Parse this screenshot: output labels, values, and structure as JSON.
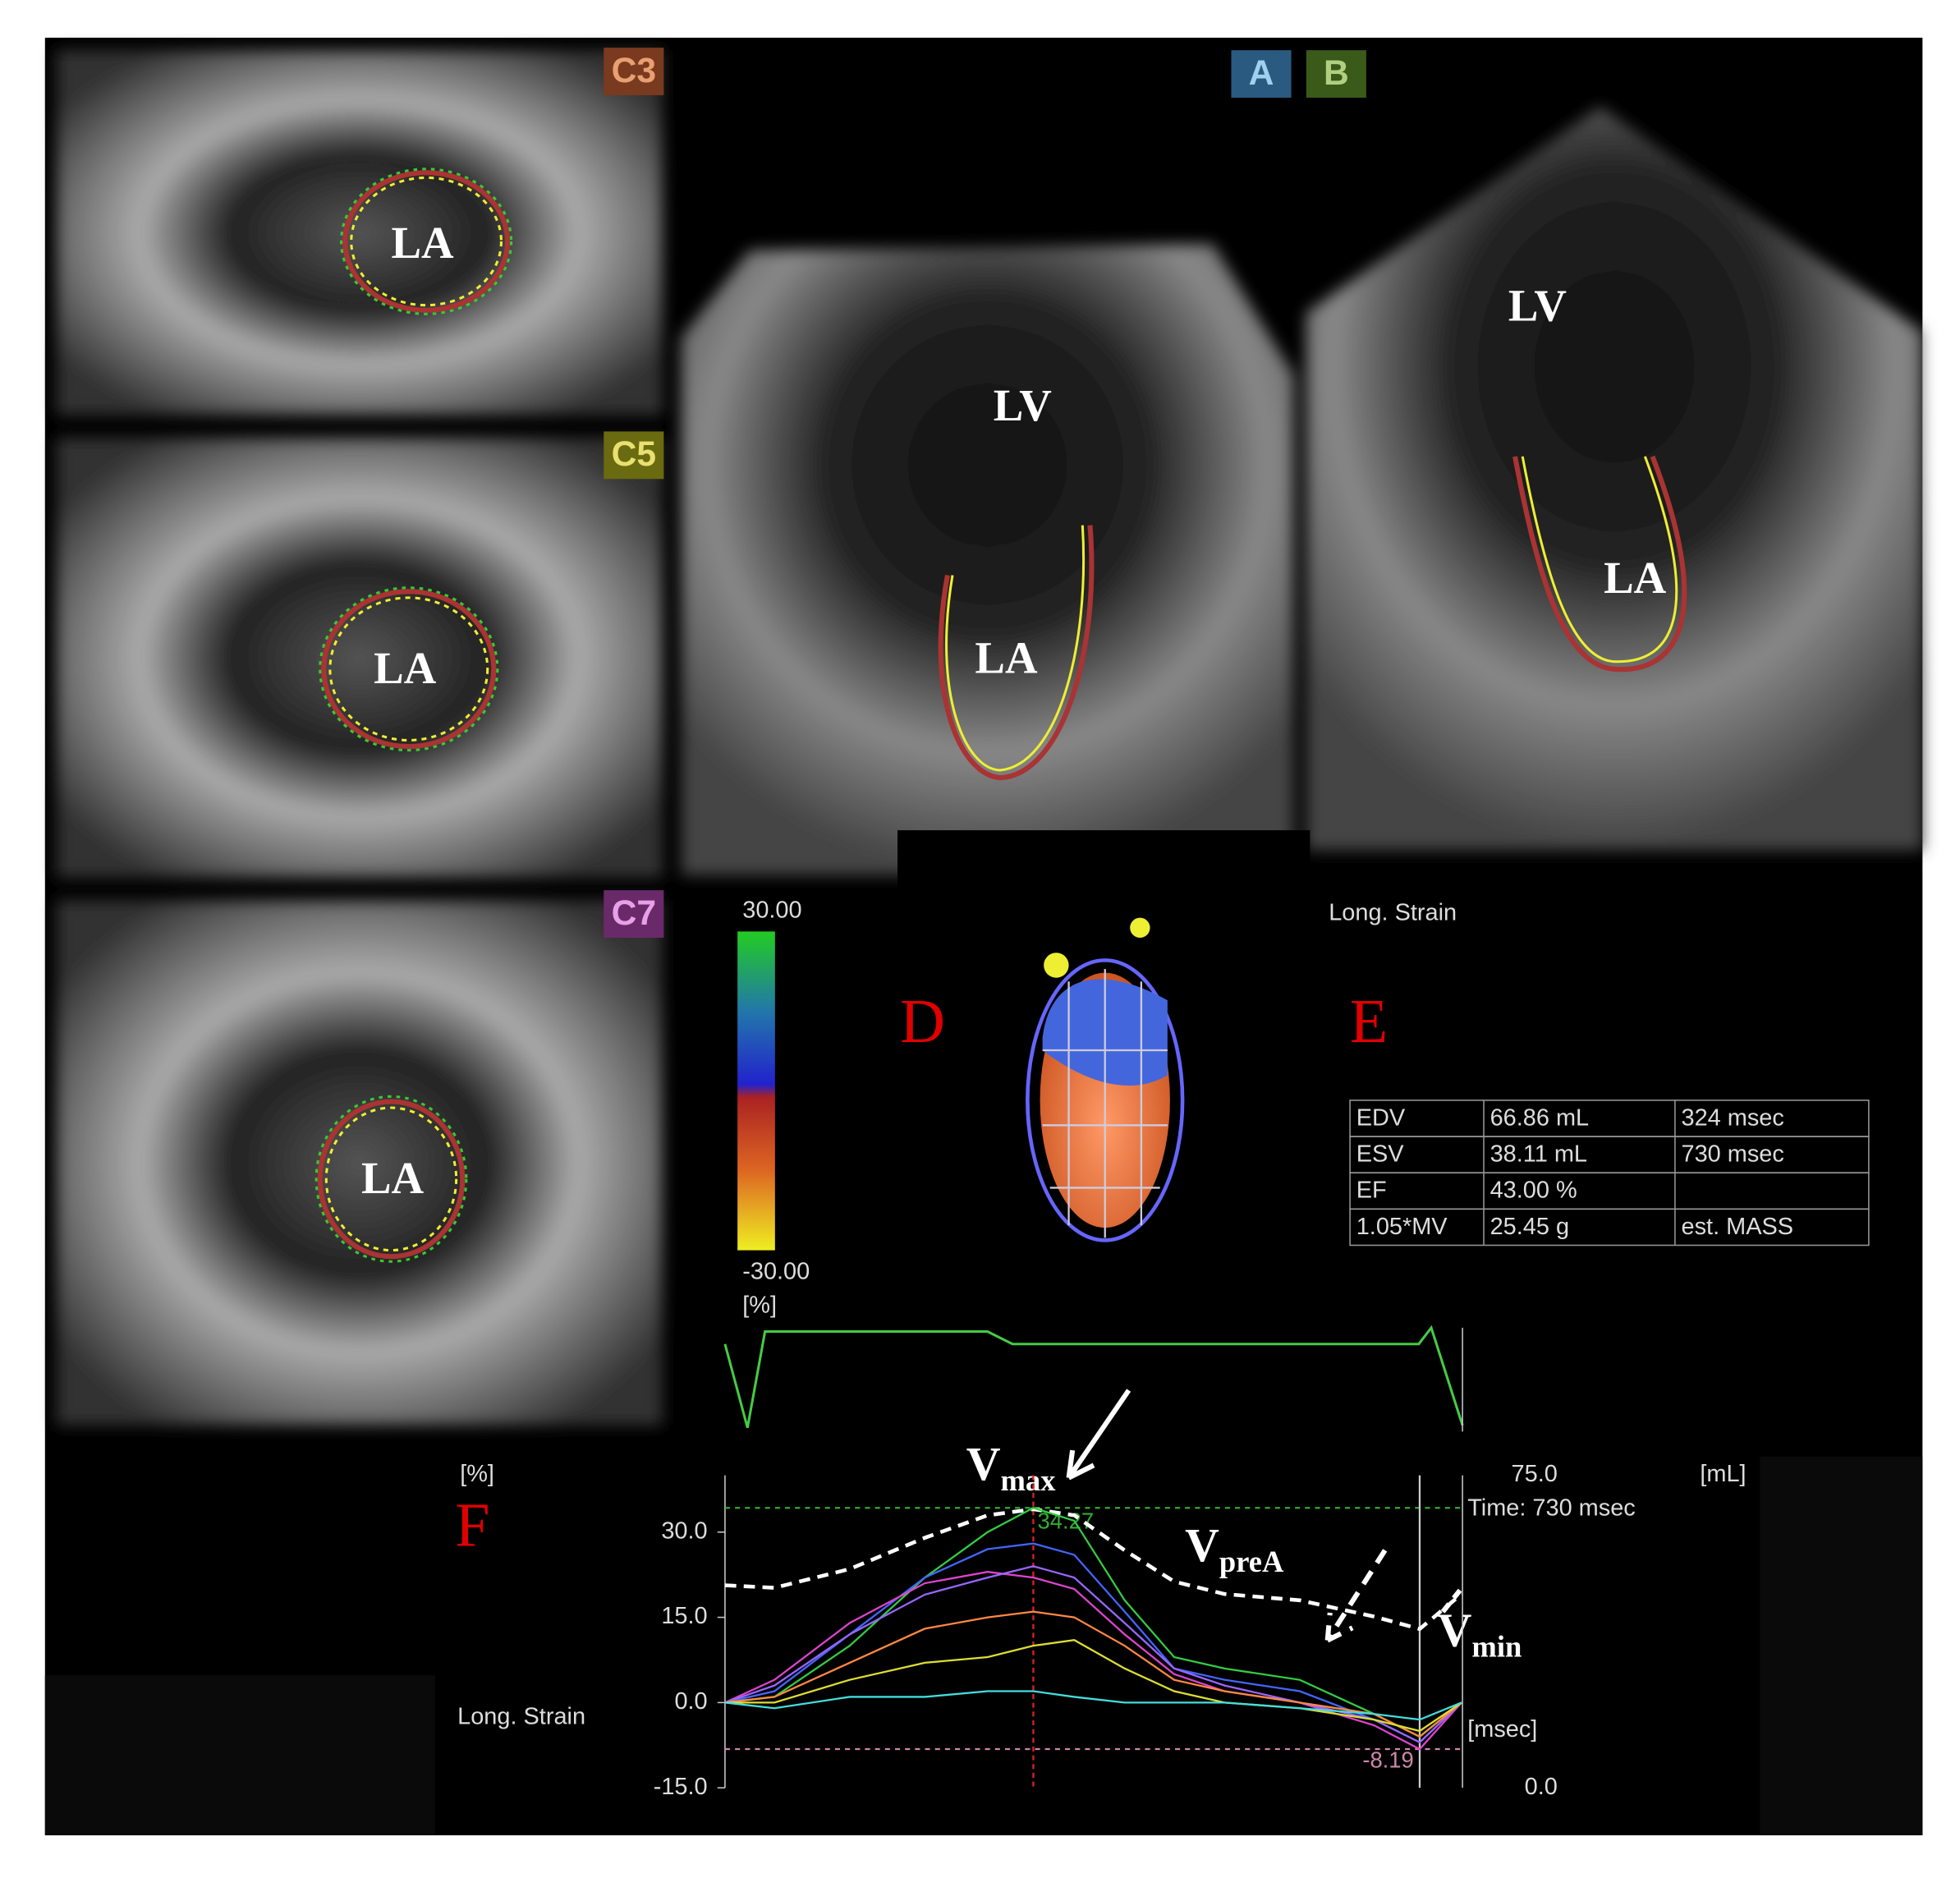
{
  "views": [
    {
      "tag": "C3",
      "chambers": [
        "LA"
      ]
    },
    {
      "tag": "C5",
      "chambers": [
        "LA"
      ]
    },
    {
      "tag": "C7",
      "chambers": [
        "LA"
      ]
    },
    {
      "tag": "A",
      "chambers": [
        "LV",
        "LA"
      ]
    },
    {
      "tag": "B",
      "chambers": [
        "LV",
        "LA"
      ]
    }
  ],
  "panel_letters": [
    "D",
    "E",
    "F"
  ],
  "colorbar": {
    "max": {
      "value": 30,
      "label": "30.00"
    },
    "min": {
      "value": -30,
      "label": "-30.00"
    },
    "unit": "[%]"
  },
  "strain_title": "Long. Strain",
  "table": {
    "rows": [
      [
        "EDV",
        "66.86 mL",
        "324 msec"
      ],
      [
        "ESV",
        "38.11 mL",
        "730 msec"
      ],
      [
        "EF",
        "43.00 %"
      ],
      [
        "1.05*MV",
        "25.45 g",
        "est. MASS"
      ]
    ]
  },
  "chart_data": {
    "type": "line",
    "y_label": "[%]",
    "y2_label": "[mL]",
    "x_label": "[msec]",
    "side_label": "Long. Strain",
    "time_label": "Time: 730 msec",
    "annotations": [
      {
        "base": "V",
        "sub": "max"
      },
      {
        "base": "V",
        "sub": "preA"
      },
      {
        "base": "V",
        "sub": "min"
      }
    ],
    "x": [
      0,
      52,
      131,
      210,
      276,
      324,
      367,
      420,
      472,
      525,
      604,
      682,
      730,
      774
    ],
    "xlim": [
      0,
      775
    ],
    "ylim": [
      -15,
      40
    ],
    "yticks": [
      {
        "value": 30,
        "label": "30.0"
      },
      {
        "value": 15,
        "label": "15.0"
      },
      {
        "value": 0,
        "label": "0.0"
      },
      {
        "value": -15,
        "label": "-15.0"
      }
    ],
    "y2lim": [
      0,
      75
    ],
    "y2ticks": [
      {
        "value": 75,
        "label": "75.0"
      },
      {
        "value": 0,
        "label": "0.0"
      }
    ],
    "grid": false,
    "cursors": [
      324,
      730
    ],
    "reference_lines": [
      {
        "value": 34.27,
        "label": "34.27",
        "color": "#33aa33"
      },
      {
        "value": -8.19,
        "label": "-8.19",
        "color": "#cc88aa"
      }
    ],
    "series": [
      {
        "color": "#ffffff",
        "dashed": true,
        "axis": "y2",
        "values": [
          48.6,
          48,
          52.5,
          60,
          65.4,
          66.86,
          65.4,
          57,
          49.5,
          46.5,
          45,
          41.1,
          38.11,
          46.5
        ]
      },
      {
        "color": "#33cc44",
        "values": [
          0,
          1,
          10,
          22,
          30,
          34.27,
          32,
          18,
          8,
          6,
          4,
          -2,
          -6,
          0
        ]
      },
      {
        "color": "#4466ff",
        "values": [
          0,
          2,
          12,
          22,
          27,
          28,
          26,
          16,
          6,
          4,
          2,
          -3,
          -7,
          0
        ]
      },
      {
        "color": "#dd44cc",
        "values": [
          0,
          4,
          14,
          21,
          23,
          22,
          20,
          12,
          5,
          2,
          0,
          -4,
          -8.19,
          0
        ]
      },
      {
        "color": "#9966ff",
        "values": [
          0,
          3,
          12,
          19,
          22,
          24,
          22,
          14,
          6,
          3,
          0,
          -3,
          -7,
          0
        ]
      },
      {
        "color": "#ff8844",
        "values": [
          0,
          1,
          7,
          13,
          15,
          16,
          15,
          10,
          4,
          2,
          0,
          -2,
          -6,
          0
        ]
      },
      {
        "color": "#dddd33",
        "values": [
          0,
          0,
          4,
          7,
          8,
          10,
          11,
          6,
          2,
          0,
          -1,
          -3,
          -5,
          0
        ]
      },
      {
        "color": "#44dddd",
        "values": [
          0,
          -1,
          1,
          1,
          2,
          2,
          1,
          0,
          0,
          0,
          -1,
          -2,
          -3,
          0
        ]
      }
    ]
  }
}
